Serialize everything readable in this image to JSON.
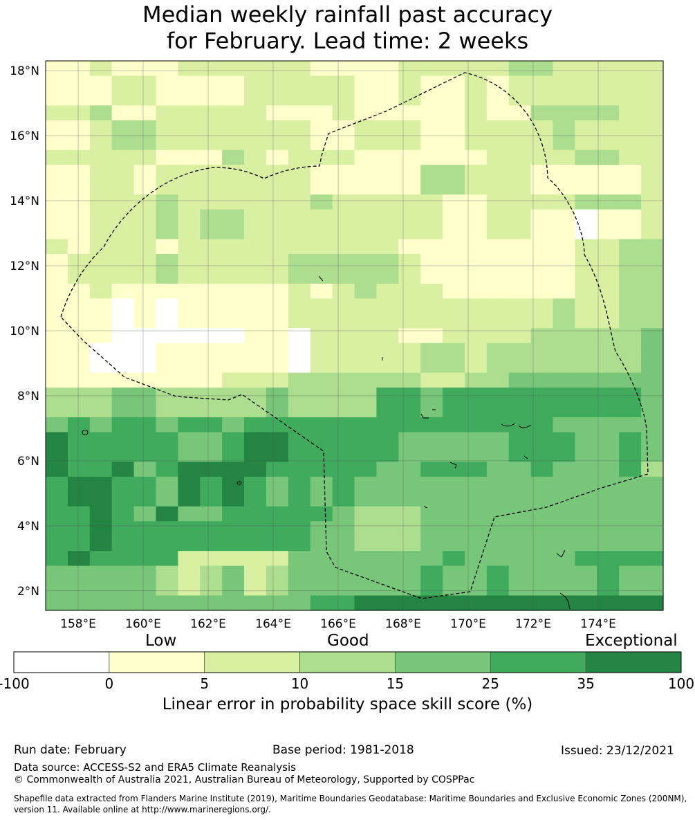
{
  "title": {
    "line1": "Median weekly rainfall past accuracy",
    "line2": "for February. Lead time: 2 weeks"
  },
  "map": {
    "lat_ticks": [
      "18°N",
      "16°N",
      "14°N",
      "12°N",
      "10°N",
      "8°N",
      "6°N",
      "4°N",
      "2°N"
    ],
    "lon_ticks": [
      "158°E",
      "160°E",
      "162°E",
      "164°E",
      "166°E",
      "168°E",
      "170°E",
      "172°E",
      "174°E"
    ],
    "lat_values": [
      18,
      16,
      14,
      12,
      10,
      8,
      6,
      4,
      2
    ],
    "lon_values": [
      158,
      160,
      162,
      164,
      166,
      168,
      170,
      172,
      174
    ],
    "extent": {
      "lon_min": 157,
      "lon_max": 176,
      "lat_min": 1.4,
      "lat_max": 18.3
    },
    "region": "Marshall Islands EEZ (dashed boundary)"
  },
  "colorbar": {
    "category_labels": {
      "low": "Low",
      "good": "Good",
      "exceptional": "Exceptional"
    },
    "ticks": [
      "-100",
      "0",
      "5",
      "10",
      "15",
      "25",
      "35",
      "100"
    ],
    "colors": [
      "#ffffff",
      "#ffffcc",
      "#d9f0a3",
      "#addd8e",
      "#78c679",
      "#41ab5d",
      "#238443"
    ],
    "xlabel": "Linear error in probability space skill score (%)"
  },
  "footer": {
    "run_date": "Run date: February",
    "base_period": "Base period: 1981-2018",
    "issued": "Issued: 23/12/2021",
    "data_source": "Data source: ACCESS-S2 and ERA5 Climate Reanalysis",
    "copyright": "© Commonwealth of Australia 2021, Australian Bureau of Meteorology, Supported by COSPPac",
    "shapefile_line1": "Shapefile data extracted from Flanders Marine Institute (2019), Maritime Boundaries Geodatabase: Maritime Boundaries and Exclusive Economic Zones (200NM),",
    "shapefile_line2": "version 11. Available online at http://www.marineregions.org/."
  }
}
